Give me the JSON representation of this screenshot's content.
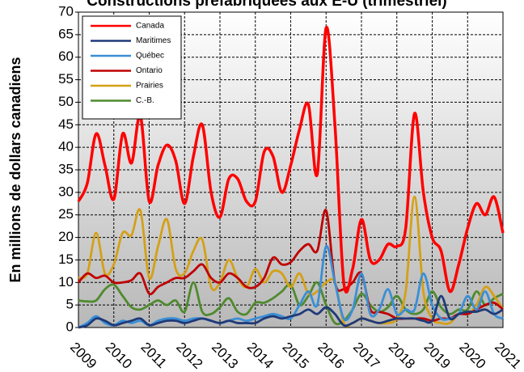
{
  "chart_data": {
    "type": "line",
    "title": "Constructions préfabriquées aux É-U (trimestriel)",
    "y_label": "En millions de dollars canadiens",
    "categories": [
      "2009",
      null,
      null,
      null,
      "2010",
      null,
      null,
      null,
      "2011",
      null,
      null,
      null,
      "2012",
      null,
      null,
      null,
      "2013",
      null,
      null,
      null,
      "2014",
      null,
      null,
      null,
      "2015",
      null,
      null,
      null,
      "2016",
      null,
      null,
      null,
      "2017",
      null,
      null,
      null,
      "2018",
      null,
      null,
      null,
      "2019",
      null,
      null,
      null,
      "2020",
      null,
      null,
      null,
      "2021"
    ],
    "series": [
      {
        "name": "Canada",
        "color": "#ff0000",
        "values": [
          28,
          32,
          43,
          36,
          28.5,
          43,
          36.5,
          47,
          28,
          36,
          40.5,
          37,
          27.5,
          38,
          45,
          30,
          24.5,
          33,
          33,
          28,
          28,
          39,
          38,
          30,
          36,
          44,
          49.5,
          34,
          66.5,
          45,
          10,
          13,
          24,
          15,
          15,
          18.5,
          18,
          22,
          47.5,
          30,
          20,
          17,
          8,
          14,
          22,
          27.5,
          25,
          29,
          21
        ]
      },
      {
        "name": "Maritimes",
        "color": "#1f3a78",
        "values": [
          0,
          0.5,
          2,
          1.5,
          0.5,
          1,
          1.5,
          2,
          0.5,
          1,
          1.5,
          1.5,
          1,
          1.5,
          2,
          1.5,
          1,
          1.5,
          1,
          1,
          1,
          2,
          2.5,
          2,
          2.5,
          3,
          4,
          3,
          4.5,
          3,
          0.5,
          1,
          2,
          1.5,
          1,
          1.5,
          2,
          2,
          2,
          1.5,
          1.5,
          7,
          2,
          3,
          3.5,
          3.5,
          4,
          3,
          4
        ]
      },
      {
        "name": "Québec",
        "color": "#3a8fd6",
        "values": [
          0,
          1,
          2.5,
          1,
          0.5,
          1.5,
          1,
          1.5,
          0.5,
          1.5,
          2,
          2,
          1.5,
          2,
          2,
          1.5,
          1,
          1.5,
          2,
          1.5,
          2,
          2.5,
          3,
          2.5,
          2,
          5,
          8,
          5,
          18,
          10,
          2,
          4,
          12,
          3,
          4,
          8.5,
          3,
          4,
          4,
          12,
          5,
          2,
          2,
          3,
          7,
          4,
          8,
          3,
          2
        ]
      },
      {
        "name": "Ontario",
        "color": "#c00000",
        "values": [
          10,
          12,
          11,
          11.5,
          10,
          10,
          10.5,
          12,
          7.5,
          9,
          10,
          11,
          11,
          12.5,
          14,
          11,
          10,
          12,
          11,
          9,
          9,
          11,
          15.5,
          14,
          14.5,
          17,
          18.5,
          17,
          26,
          10,
          8.5,
          10,
          12,
          4,
          3.5,
          3,
          2,
          2,
          2,
          2,
          1.5,
          2,
          2,
          3,
          3,
          4,
          5,
          5.5,
          4
        ]
      },
      {
        "name": "Prairies",
        "color": "#d4a017",
        "values": [
          11,
          12,
          21,
          12,
          14,
          21,
          20.5,
          26,
          11,
          18,
          24,
          13,
          12,
          17,
          19.5,
          9,
          10,
          15,
          11,
          9,
          13,
          10,
          12.5,
          12,
          9,
          12,
          7.5,
          8,
          10,
          10,
          1,
          1,
          2,
          1.5,
          1,
          1,
          2,
          8,
          29,
          8,
          2,
          1,
          1,
          3,
          3,
          5,
          9,
          7,
          4
        ]
      },
      {
        "name": "C.-B.",
        "color": "#4f8a2e",
        "values": [
          6,
          5.8,
          6,
          8.5,
          9.5,
          7,
          4.5,
          4,
          5,
          6,
          5,
          6,
          3.5,
          10,
          3.5,
          3,
          4.5,
          6.5,
          3.5,
          3,
          5.5,
          5.5,
          6.5,
          8,
          9.5,
          5,
          7,
          10,
          5,
          1,
          1.5,
          4,
          7.5,
          5,
          3.5,
          4.5,
          7,
          4,
          3,
          4,
          8,
          4.5,
          3,
          4,
          4,
          8,
          5,
          6.5,
          7.5
        ]
      }
    ],
    "ylim": [
      0,
      70
    ],
    "yticks": [
      0,
      5,
      10,
      15,
      20,
      25,
      30,
      35,
      40,
      45,
      50,
      55,
      60,
      65,
      70
    ],
    "grid": true,
    "legend": "upper left"
  }
}
